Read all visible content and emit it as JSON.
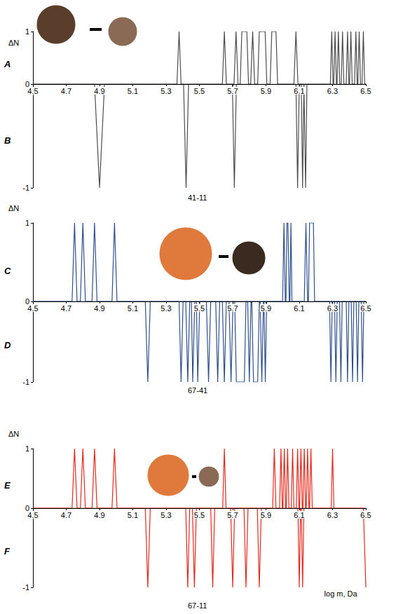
{
  "chart_data": [
    {
      "type": "line",
      "title": "41-11",
      "ylabel": "ΔN",
      "xlim": [
        4.5,
        6.5
      ],
      "xticks": [
        4.5,
        4.7,
        4.9,
        5.1,
        5.3,
        5.5,
        5.7,
        5.9,
        6.1,
        6.3,
        6.5
      ],
      "ylim": [
        -1,
        1
      ],
      "yticks": [
        -1,
        0,
        1
      ],
      "grid": false,
      "series": [
        {
          "name": "A",
          "color": "#4d4d4d",
          "x": [
            4.5,
            5.365,
            5.378,
            5.39,
            5.638,
            5.65,
            5.662,
            5.708,
            5.72,
            5.732,
            5.745,
            5.755,
            5.785,
            5.795,
            5.808,
            5.82,
            5.832,
            5.85,
            5.86,
            5.895,
            5.905,
            5.925,
            5.935,
            5.96,
            5.97,
            6.068,
            6.08,
            6.092,
            6.287,
            6.295,
            6.303,
            6.307,
            6.315,
            6.323,
            6.327,
            6.335,
            6.343,
            6.352,
            6.36,
            6.368,
            6.382,
            6.39,
            6.398,
            6.402,
            6.41,
            6.418,
            6.432,
            6.44,
            6.448,
            6.452,
            6.46,
            6.468,
            6.477,
            6.485,
            6.493,
            6.5
          ],
          "values": [
            0,
            0,
            1,
            0,
            0,
            1,
            0,
            0,
            1,
            0,
            0,
            1,
            1,
            0,
            0,
            1,
            0,
            0,
            1,
            1,
            0,
            0,
            1,
            1,
            0,
            0,
            1,
            0,
            0,
            1,
            0,
            0,
            1,
            0,
            0,
            1,
            0,
            0,
            1,
            0,
            0,
            1,
            0,
            0,
            1,
            0,
            0,
            1,
            0,
            0,
            1,
            0,
            0,
            1,
            0,
            0
          ]
        },
        {
          "name": "B",
          "color": "#4d4d4d",
          "x": [
            4.5,
            4.87,
            4.9,
            4.93,
            5.405,
            5.42,
            5.435,
            5.698,
            5.71,
            5.722,
            6.08,
            6.09,
            6.1,
            6.112,
            6.12,
            6.128,
            6.13,
            6.138,
            6.146,
            6.5
          ],
          "values": [
            0,
            0,
            -1,
            0,
            0,
            -1,
            0,
            0,
            -1,
            0,
            0,
            -1,
            0,
            0,
            -1,
            0,
            0,
            -1,
            0,
            0
          ]
        }
      ]
    },
    {
      "type": "line",
      "title": "67-41",
      "ylabel": "ΔN",
      "xlim": [
        4.5,
        6.5
      ],
      "xticks": [
        4.5,
        4.7,
        4.9,
        5.1,
        5.3,
        5.5,
        5.7,
        5.9,
        6.1,
        6.3,
        6.5
      ],
      "ylim": [
        -1,
        1
      ],
      "yticks": [
        -1,
        0,
        1
      ],
      "grid": false,
      "series": [
        {
          "name": "C",
          "color": "#2f4f8f",
          "x": [
            4.5,
            4.735,
            4.75,
            4.765,
            4.785,
            4.8,
            4.815,
            4.855,
            4.87,
            4.885,
            4.975,
            4.99,
            5.005,
            6.0,
            6.008,
            6.016,
            6.02,
            6.026,
            6.032,
            6.04,
            6.044,
            6.05,
            6.056,
            6.13,
            6.14,
            6.15,
            6.155,
            6.162,
            6.185,
            6.192,
            6.5
          ],
          "values": [
            0,
            0,
            1,
            0,
            0,
            1,
            0,
            0,
            1,
            0,
            0,
            1,
            0,
            0,
            1,
            0,
            0,
            1,
            1,
            0,
            0,
            1,
            0,
            0,
            1,
            0,
            0,
            1,
            1,
            0,
            0
          ]
        },
        {
          "name": "D",
          "color": "#2f4f8f",
          "x": [
            4.5,
            5.175,
            5.19,
            5.205,
            5.378,
            5.39,
            5.402,
            5.418,
            5.43,
            5.442,
            5.452,
            5.46,
            5.472,
            5.482,
            5.49,
            5.502,
            5.542,
            5.555,
            5.568,
            5.598,
            5.61,
            5.622,
            5.638,
            5.65,
            5.662,
            5.678,
            5.69,
            5.702,
            5.712,
            5.722,
            5.77,
            5.78,
            5.79,
            5.8,
            5.81,
            5.815,
            5.825,
            5.85,
            5.86,
            5.865,
            5.875,
            5.885,
            5.888,
            5.896,
            5.904,
            6.282,
            6.29,
            6.298,
            6.312,
            6.32,
            6.328,
            6.342,
            6.35,
            6.358,
            6.382,
            6.39,
            6.398,
            6.412,
            6.42,
            6.428,
            6.442,
            6.45,
            6.458,
            6.472,
            6.48,
            6.488,
            6.5
          ],
          "values": [
            0,
            0,
            -1,
            0,
            0,
            -1,
            0,
            0,
            -1,
            0,
            0,
            -1,
            0,
            0,
            -1,
            0,
            0,
            -1,
            0,
            0,
            -1,
            0,
            0,
            -1,
            0,
            0,
            -1,
            0,
            0,
            -1,
            -1,
            0,
            0,
            -1,
            0,
            0,
            -1,
            -1,
            0,
            0,
            -1,
            0,
            0,
            -1,
            0,
            0,
            -1,
            0,
            0,
            -1,
            0,
            0,
            -1,
            0,
            0,
            -1,
            0,
            0,
            -1,
            0,
            0,
            -1,
            0,
            0,
            -1,
            0,
            0
          ]
        }
      ]
    },
    {
      "type": "line",
      "title": "67-11",
      "ylabel": "ΔN",
      "xlabel": "log m, Da",
      "xlim": [
        4.5,
        6.5
      ],
      "xticks": [
        4.5,
        4.7,
        4.9,
        5.1,
        5.3,
        5.5,
        5.7,
        5.9,
        6.1,
        6.3,
        6.5
      ],
      "ylim": [
        -1,
        1
      ],
      "yticks": [
        -1,
        0,
        1
      ],
      "grid": false,
      "series": [
        {
          "name": "E",
          "color": "#e8291c",
          "x": [
            4.5,
            4.735,
            4.75,
            4.765,
            4.785,
            4.8,
            4.815,
            4.855,
            4.87,
            4.885,
            4.975,
            4.99,
            5.005,
            5.64,
            5.65,
            5.66,
            5.94,
            5.95,
            5.96,
            5.982,
            5.99,
            5.998,
            6.002,
            6.01,
            6.018,
            6.022,
            6.03,
            6.038,
            6.052,
            6.06,
            6.068,
            6.082,
            6.09,
            6.098,
            6.102,
            6.11,
            6.118,
            6.122,
            6.13,
            6.138,
            6.142,
            6.15,
            6.158,
            6.162,
            6.17,
            6.178,
            6.292,
            6.3,
            6.308,
            6.5
          ],
          "values": [
            0,
            0,
            1,
            0,
            0,
            1,
            0,
            0,
            1,
            0,
            0,
            1,
            0,
            0,
            1,
            0,
            0,
            1,
            0,
            0,
            1,
            0,
            0,
            1,
            0,
            0,
            1,
            0,
            0,
            1,
            0,
            0,
            1,
            0,
            0,
            1,
            0,
            0,
            1,
            0,
            0,
            1,
            0,
            0,
            1,
            0,
            0,
            1,
            0,
            0
          ]
        },
        {
          "name": "F",
          "color": "#e8291c",
          "x": [
            4.5,
            5.175,
            5.19,
            5.205,
            5.418,
            5.43,
            5.442,
            5.458,
            5.47,
            5.482,
            5.568,
            5.58,
            5.592,
            5.688,
            5.7,
            5.712,
            5.768,
            5.78,
            5.792,
            5.848,
            5.86,
            5.872,
            6.092,
            6.1,
            6.108,
            6.112,
            6.12,
            6.128,
            6.485,
            6.5
          ],
          "values": [
            0,
            0,
            -1,
            0,
            0,
            -1,
            0,
            0,
            -1,
            0,
            0,
            -1,
            0,
            0,
            -1,
            0,
            0,
            -1,
            0,
            0,
            -1,
            0,
            0,
            -1,
            0,
            0,
            -1,
            0,
            0,
            -1
          ]
        }
      ]
    }
  ]
}
